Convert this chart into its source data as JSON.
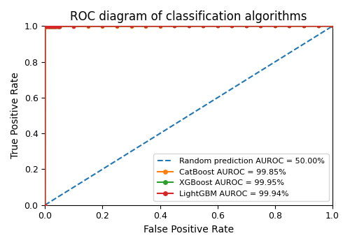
{
  "title": "ROC diagram of classification algorithms",
  "xlabel": "False Positive Rate",
  "ylabel": "True Positive Rate",
  "xlim": [
    0.0,
    1.0
  ],
  "ylim": [
    0.0,
    1.0
  ],
  "random_label": "Random prediction AUROC = 50.00%",
  "random_color": "#1f77b4",
  "curves": [
    {
      "label": "CatBoost AUROC = 99.85%",
      "color": "#ff7f0e",
      "marker": "o",
      "auroc": 0.9985,
      "seed": 10
    },
    {
      "label": "XGBoost AUROC = 99.95%",
      "color": "#2ca02c",
      "marker": "o",
      "auroc": 0.9995,
      "seed": 20
    },
    {
      "label": "LightGBM AUROC = 99.94%",
      "color": "#d62728",
      "marker": "o",
      "auroc": 0.9994,
      "seed": 30
    }
  ],
  "legend_loc": "lower right",
  "figsize": [
    5.0,
    3.51
  ],
  "dpi": 100,
  "n_points": 200,
  "n_markers": 40
}
